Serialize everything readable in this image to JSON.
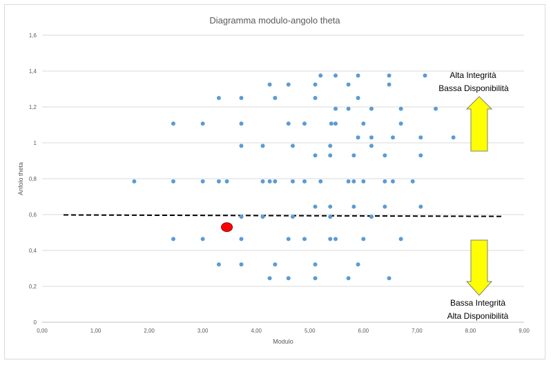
{
  "chart_data": {
    "type": "scatter",
    "title": "Diagramma modulo-angolo theta",
    "xlabel": "Modulo",
    "ylabel": "Anfolo theta",
    "xlim": [
      0,
      9
    ],
    "ylim": [
      0,
      1.6
    ],
    "xticks": [
      "0,00",
      "1,00",
      "2,00",
      "3,00",
      "4,00",
      "5,00",
      "6,00",
      "7,00",
      "8,00",
      "9,00"
    ],
    "yticks": [
      "0",
      "0,2",
      "0,4",
      "0,6",
      "0,8",
      "1",
      "1,2",
      "1,4",
      "1,6"
    ],
    "grid": "horizontal",
    "point_color": "#5b9bd5",
    "points": [
      [
        5.2,
        1.375
      ],
      [
        5.48,
        1.375
      ],
      [
        5.9,
        1.375
      ],
      [
        6.48,
        1.375
      ],
      [
        7.15,
        1.375
      ],
      [
        4.25,
        1.325
      ],
      [
        4.6,
        1.325
      ],
      [
        5.1,
        1.325
      ],
      [
        5.72,
        1.325
      ],
      [
        6.48,
        1.325
      ],
      [
        3.3,
        1.25
      ],
      [
        3.72,
        1.25
      ],
      [
        4.35,
        1.25
      ],
      [
        5.1,
        1.25
      ],
      [
        5.9,
        1.25
      ],
      [
        5.48,
        1.19
      ],
      [
        5.72,
        1.19
      ],
      [
        6.15,
        1.19
      ],
      [
        6.7,
        1.19
      ],
      [
        7.35,
        1.19
      ],
      [
        2.45,
        1.107
      ],
      [
        3.0,
        1.107
      ],
      [
        3.72,
        1.107
      ],
      [
        4.6,
        1.107
      ],
      [
        4.9,
        1.107
      ],
      [
        5.4,
        1.107
      ],
      [
        5.48,
        1.107
      ],
      [
        6.0,
        1.107
      ],
      [
        6.7,
        1.107
      ],
      [
        5.9,
        1.03
      ],
      [
        6.15,
        1.03
      ],
      [
        6.55,
        1.03
      ],
      [
        7.07,
        1.03
      ],
      [
        7.68,
        1.03
      ],
      [
        3.72,
        0.983
      ],
      [
        4.12,
        0.983
      ],
      [
        4.68,
        0.983
      ],
      [
        5.38,
        0.983
      ],
      [
        6.15,
        0.983
      ],
      [
        5.1,
        0.93
      ],
      [
        5.38,
        0.93
      ],
      [
        5.82,
        0.93
      ],
      [
        6.4,
        0.93
      ],
      [
        7.07,
        0.93
      ],
      [
        1.72,
        0.785
      ],
      [
        2.45,
        0.785
      ],
      [
        3.0,
        0.785
      ],
      [
        3.3,
        0.785
      ],
      [
        3.45,
        0.785
      ],
      [
        4.12,
        0.785
      ],
      [
        4.25,
        0.785
      ],
      [
        4.35,
        0.785
      ],
      [
        4.68,
        0.785
      ],
      [
        4.9,
        0.785
      ],
      [
        5.2,
        0.785
      ],
      [
        5.72,
        0.785
      ],
      [
        5.82,
        0.785
      ],
      [
        6.0,
        0.785
      ],
      [
        6.4,
        0.785
      ],
      [
        6.55,
        0.785
      ],
      [
        6.92,
        0.785
      ],
      [
        5.1,
        0.644
      ],
      [
        5.38,
        0.644
      ],
      [
        5.82,
        0.644
      ],
      [
        6.4,
        0.644
      ],
      [
        7.07,
        0.644
      ],
      [
        3.72,
        0.588
      ],
      [
        4.12,
        0.588
      ],
      [
        4.68,
        0.588
      ],
      [
        5.38,
        0.588
      ],
      [
        6.15,
        0.588
      ],
      [
        2.45,
        0.464
      ],
      [
        3.0,
        0.464
      ],
      [
        3.72,
        0.464
      ],
      [
        4.6,
        0.464
      ],
      [
        4.9,
        0.464
      ],
      [
        5.38,
        0.464
      ],
      [
        5.48,
        0.464
      ],
      [
        6.0,
        0.464
      ],
      [
        6.7,
        0.464
      ],
      [
        3.3,
        0.322
      ],
      [
        3.72,
        0.322
      ],
      [
        4.35,
        0.322
      ],
      [
        5.1,
        0.322
      ],
      [
        5.9,
        0.322
      ],
      [
        4.25,
        0.245
      ],
      [
        4.6,
        0.245
      ],
      [
        5.1,
        0.245
      ],
      [
        5.72,
        0.245
      ],
      [
        6.48,
        0.245
      ]
    ],
    "highlight_point": {
      "x": 3.45,
      "y": 0.53,
      "color": "#ff0000"
    },
    "threshold_line": {
      "x": [
        0.4,
        8.6
      ],
      "y": [
        0.598,
        0.59
      ],
      "style": "dashed",
      "color": "#000000"
    },
    "annotations": [
      {
        "lines": [
          "Alta Integrità",
          "Bassa Disponibilità"
        ],
        "arrow": "up",
        "arrow_color": "#ffff00"
      },
      {
        "lines": [
          "Bassa Integrità",
          "Alta Disponibilità"
        ],
        "arrow": "down",
        "arrow_color": "#ffff00"
      }
    ]
  }
}
